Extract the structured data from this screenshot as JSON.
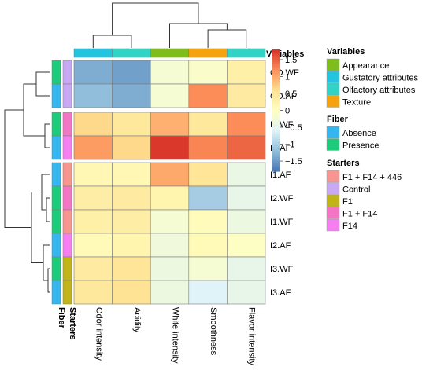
{
  "chart_data": {
    "type": "heatmap",
    "title": "",
    "columns": [
      "Odor intensity",
      "Acidity",
      "White intensity",
      "Smoothness",
      "Flavor intensity"
    ],
    "rows": [
      "CO.WF",
      "CO.AF",
      "I4.WF",
      "I4.AF",
      "I1.AF",
      "I2.WF",
      "I1.WF",
      "I2.AF",
      "I3.WF",
      "I3.AF"
    ],
    "values": [
      [
        -1.35,
        -1.45,
        -0.2,
        -0.1,
        0.3
      ],
      [
        -1.2,
        -1.35,
        -0.2,
        1.2,
        0.4
      ],
      [
        0.65,
        0.45,
        0.95,
        0.45,
        1.2
      ],
      [
        1.1,
        0.65,
        1.75,
        1.25,
        1.45
      ],
      [
        0.15,
        0.15,
        1.0,
        0.5,
        -0.4
      ],
      [
        0.35,
        0.4,
        0.2,
        -1.05,
        -0.45
      ],
      [
        0.3,
        0.35,
        -0.2,
        0.05,
        -0.35
      ],
      [
        0.1,
        0.2,
        -0.3,
        0.1,
        -0.05
      ],
      [
        0.4,
        0.5,
        -0.35,
        -0.2,
        -0.45
      ],
      [
        0.45,
        0.55,
        -0.35,
        -0.6,
        -0.45
      ]
    ],
    "column_variables": [
      "Gustatory attributes",
      "Olfactory attributes",
      "Appearance",
      "Texture",
      "Olfactory attributes"
    ],
    "row_fiber": [
      "Presence",
      "Absence",
      "Presence",
      "Absence",
      "Absence",
      "Presence",
      "Presence",
      "Absence",
      "Presence",
      "Absence"
    ],
    "row_starters": [
      "Control",
      "Control",
      "F1 + F14",
      "F14",
      "F1 + F14 + 446",
      "F1 + F14",
      "F1 + F14 + 446",
      "F14",
      "F1",
      "F1"
    ],
    "color_scale": {
      "min": -1.8,
      "max": 1.8,
      "ticks": [
        1.5,
        1,
        0.5,
        0,
        -0.5,
        -1,
        -1.5
      ],
      "tick_labels": [
        "1.5",
        "1",
        "0.5",
        "0",
        "−0.5",
        "−1",
        "−1.5"
      ],
      "colors": [
        "#4575b4",
        "#91bfdb",
        "#e0f3f8",
        "#ffffbf",
        "#fee090",
        "#fc8d59",
        "#d73027"
      ]
    },
    "annotation_labels": [
      "Fiber",
      "Starters"
    ],
    "legends": [
      {
        "title": "Variables",
        "entries": [
          {
            "label": "Appearance",
            "color": "#7fbc1e"
          },
          {
            "label": "Gustatory attributes",
            "color": "#22c4df"
          },
          {
            "label": "Olfactory attributes",
            "color": "#30d4c6"
          },
          {
            "label": "Texture",
            "color": "#f5a20c"
          }
        ]
      },
      {
        "title": "Fiber",
        "entries": [
          {
            "label": "Absence",
            "color": "#35b6ee"
          },
          {
            "label": "Presence",
            "color": "#1ccc7a"
          }
        ]
      },
      {
        "title": "Starters",
        "entries": [
          {
            "label": "F1 + F14 + 446",
            "color": "#f79690"
          },
          {
            "label": "Control",
            "color": "#c8a8f2"
          },
          {
            "label": "F1",
            "color": "#c0b418"
          },
          {
            "label": "F1 + F14",
            "color": "#f475c4"
          },
          {
            "label": "F14",
            "color": "#f57ff0"
          }
        ]
      }
    ],
    "column_order_dendrogram": "((Odor intensity, Acidity), (White intensity, (Smoothness, Flavor intensity)))",
    "row_order_dendrogram": "(((CO.WF, CO.AF), (I4.WF, I4.AF)), ((I1.AF, (I2.WF, I1.WF)), (I2.AF, (I3.WF, I3.AF))))"
  }
}
